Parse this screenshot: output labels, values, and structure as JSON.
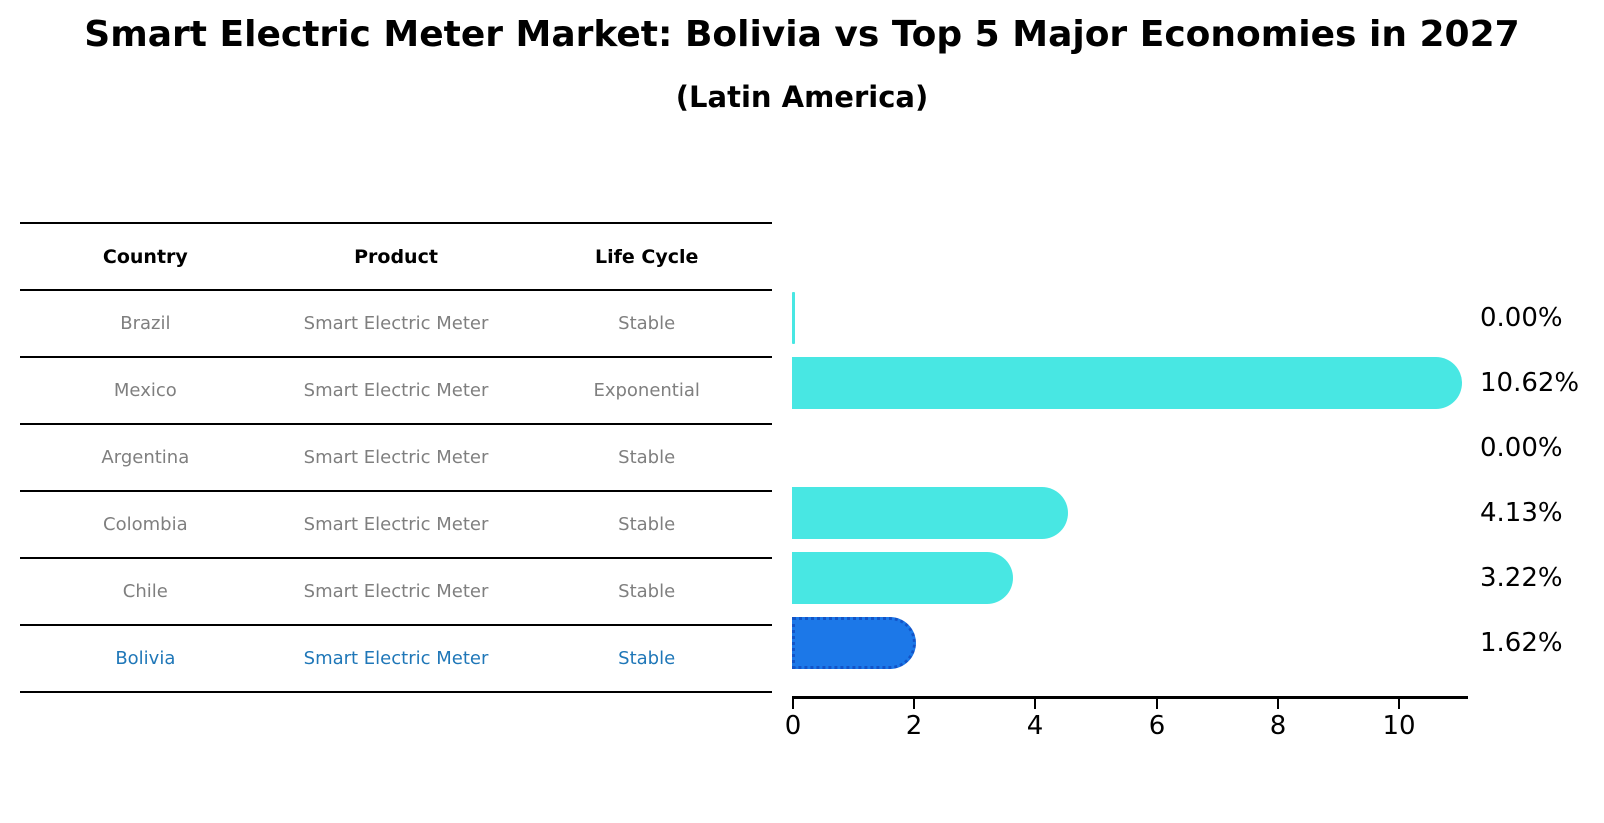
{
  "header": {
    "title": "Smart Electric Meter Market: Bolivia vs Top 5 Major Economies in 2027",
    "subtitle": "(Latin America)"
  },
  "table": {
    "headers": [
      "Country",
      "Product",
      "Life Cycle"
    ],
    "rows": [
      {
        "country": "Brazil",
        "product": "Smart Electric Meter",
        "life_cycle": "Stable",
        "highlight": false
      },
      {
        "country": "Mexico",
        "product": "Smart Electric Meter",
        "life_cycle": "Exponential",
        "highlight": false
      },
      {
        "country": "Argentina",
        "product": "Smart Electric Meter",
        "life_cycle": "Stable",
        "highlight": false
      },
      {
        "country": "Colombia",
        "product": "Smart Electric Meter",
        "life_cycle": "Stable",
        "highlight": false
      },
      {
        "country": "Chile",
        "product": "Smart Electric Meter",
        "life_cycle": "Stable",
        "highlight": false
      },
      {
        "country": "Bolivia",
        "product": "Smart Electric Meter",
        "life_cycle": "Stable",
        "highlight": true
      }
    ]
  },
  "chart_data": {
    "type": "bar",
    "orientation": "horizontal",
    "title": "Smart Electric Meter Market: Bolivia vs Top 5 Major Economies in 2027",
    "subtitle": "(Latin America)",
    "categories": [
      "Brazil",
      "Mexico",
      "Argentina",
      "Colombia",
      "Chile",
      "Bolivia"
    ],
    "values": [
      0.0,
      10.62,
      0.0,
      4.13,
      3.22,
      1.62
    ],
    "value_labels": [
      "0.00%",
      "10.62%",
      "0.00%",
      "4.13%",
      "3.22%",
      "1.62%"
    ],
    "x_ticks": [
      "0",
      "2",
      "4",
      "6",
      "8",
      "10"
    ],
    "xlim": [
      0,
      11.15
    ],
    "highlight_index": 5,
    "grid": false,
    "legend": "none",
    "colors": {
      "bar": "#48e7e3",
      "highlight_bar": "#1c78e8",
      "highlight_border": "#1254c8",
      "highlight_text": "#1f77b8",
      "table_text": "#7f7f7f",
      "axis": "#000000"
    }
  }
}
